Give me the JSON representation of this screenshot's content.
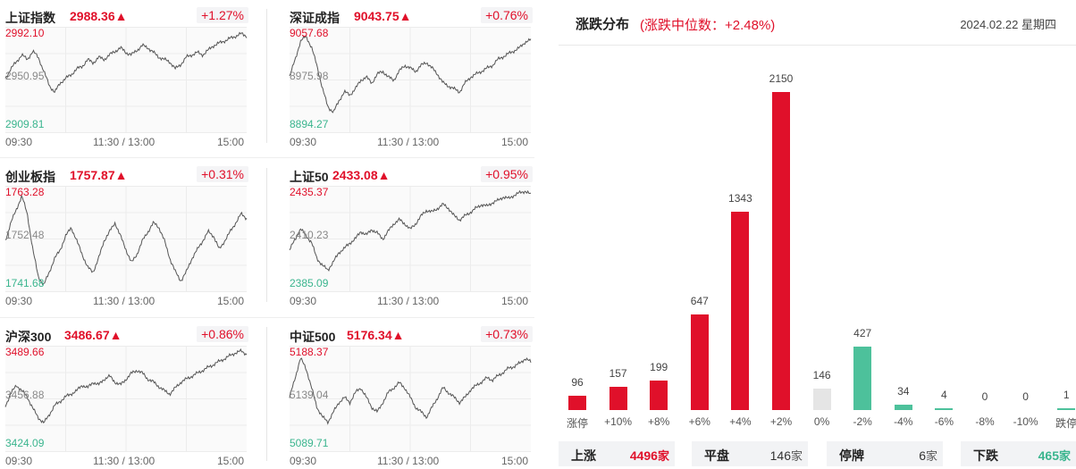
{
  "indices": [
    {
      "name": "上证指数",
      "value": "2988.36▲",
      "change": "+1.27%",
      "high": "2992.10",
      "mid": "2950.95",
      "low": "2909.81",
      "x_labels": [
        "09:30",
        "11:30 / 13:00",
        "15:00"
      ],
      "series": [
        2952,
        2960,
        2966,
        2972,
        2968,
        2975,
        2970,
        2958,
        2946,
        2940,
        2948,
        2952,
        2955,
        2960,
        2962,
        2968,
        2965,
        2970,
        2968,
        2972,
        2975,
        2978,
        2974,
        2972,
        2976,
        2980,
        2978,
        2974,
        2970,
        2968,
        2966,
        2960,
        2964,
        2970,
        2972,
        2974,
        2972,
        2976,
        2980,
        2982,
        2984,
        2986,
        2988,
        2990,
        2988
      ]
    },
    {
      "name": "深证成指",
      "value": "9043.75▲",
      "change": "+0.76%",
      "high": "9057.68",
      "mid": "8975.98",
      "low": "8894.27",
      "x_labels": [
        "09:30",
        "11:30 / 13:00",
        "15:00"
      ],
      "series": [
        8980,
        9010,
        9040,
        9050,
        9030,
        9000,
        8960,
        8930,
        8920,
        8940,
        8955,
        8950,
        8960,
        8975,
        8980,
        8970,
        8985,
        8990,
        8980,
        8975,
        8990,
        9000,
        8995,
        8990,
        9000,
        9005,
        8995,
        8985,
        8970,
        8965,
        8960,
        8955,
        8970,
        8980,
        8985,
        8990,
        8995,
        9000,
        9010,
        9015,
        9020,
        9025,
        9030,
        9040,
        9043
      ]
    },
    {
      "name": "创业板指",
      "value": "1757.87▲",
      "change": "+0.31%",
      "high": "1763.28",
      "mid": "1752.48",
      "low": "1741.68",
      "x_labels": [
        "09:30",
        "11:30 / 13:00",
        "15:00"
      ],
      "series": [
        1752,
        1756,
        1759,
        1762,
        1758,
        1750,
        1744,
        1742,
        1745,
        1748,
        1750,
        1753,
        1755,
        1752,
        1749,
        1746,
        1745,
        1748,
        1752,
        1754,
        1756,
        1753,
        1750,
        1747,
        1749,
        1752,
        1754,
        1756,
        1755,
        1752,
        1748,
        1745,
        1743,
        1745,
        1748,
        1750,
        1752,
        1754,
        1753,
        1750,
        1752,
        1754,
        1756,
        1758,
        1757
      ]
    },
    {
      "name": "上证50",
      "value": "2433.08▲",
      "change": "+0.95%",
      "high": "2435.37",
      "mid": "2410.23",
      "low": "2385.09",
      "x_labels": [
        "09:30",
        "11:30 / 13:00",
        "15:00"
      ],
      "series": [
        2404,
        2410,
        2415,
        2412,
        2408,
        2400,
        2396,
        2394,
        2398,
        2403,
        2405,
        2408,
        2410,
        2414,
        2412,
        2415,
        2413,
        2410,
        2414,
        2418,
        2420,
        2418,
        2415,
        2418,
        2422,
        2425,
        2424,
        2426,
        2428,
        2426,
        2422,
        2420,
        2422,
        2424,
        2426,
        2428,
        2427,
        2429,
        2430,
        2432,
        2431,
        2433,
        2434,
        2435,
        2433
      ]
    },
    {
      "name": "沪深300",
      "value": "3486.67▲",
      "change": "+0.86%",
      "high": "3489.66",
      "mid": "3456.88",
      "low": "3424.09",
      "x_labels": [
        "09:30",
        "11:30 / 13:00",
        "15:00"
      ],
      "series": [
        3452,
        3460,
        3466,
        3462,
        3458,
        3450,
        3444,
        3440,
        3446,
        3452,
        3455,
        3458,
        3460,
        3462,
        3466,
        3464,
        3468,
        3466,
        3470,
        3472,
        3468,
        3466,
        3470,
        3474,
        3476,
        3474,
        3470,
        3468,
        3465,
        3462,
        3460,
        3464,
        3468,
        3470,
        3472,
        3474,
        3476,
        3478,
        3480,
        3482,
        3484,
        3486,
        3488,
        3489,
        3487
      ]
    },
    {
      "name": "中证500",
      "value": "5176.34▲",
      "change": "+0.73%",
      "high": "5188.37",
      "mid": "5139.04",
      "low": "5089.71",
      "x_labels": [
        "09:30",
        "11:30 / 13:00",
        "15:00"
      ],
      "series": [
        5140,
        5160,
        5180,
        5170,
        5150,
        5130,
        5120,
        5115,
        5125,
        5135,
        5140,
        5135,
        5145,
        5150,
        5140,
        5130,
        5125,
        5135,
        5145,
        5150,
        5155,
        5150,
        5140,
        5130,
        5125,
        5120,
        5130,
        5140,
        5150,
        5145,
        5140,
        5135,
        5140,
        5148,
        5152,
        5156,
        5160,
        5158,
        5162,
        5166,
        5170,
        5172,
        5175,
        5180,
        5176
      ]
    }
  ],
  "distribution": {
    "title": "涨跌分布",
    "subtitle": "(涨跌中位数：+2.48%)",
    "date": "2024.02.22 星期四",
    "colors": {
      "up": "#e0102a",
      "flat": "#e5e5e5",
      "down": "#4dc19b"
    },
    "chart_data": {
      "type": "bar",
      "categories": [
        "涨停",
        "+10%",
        "+8%",
        "+6%",
        "+4%",
        "+2%",
        "0%",
        "-2%",
        "-4%",
        "-6%",
        "-8%",
        "-10%",
        "跌停"
      ],
      "values": [
        96,
        157,
        199,
        647,
        1343,
        2150,
        146,
        427,
        34,
        4,
        0,
        0,
        1
      ],
      "kinds": [
        "up",
        "up",
        "up",
        "up",
        "up",
        "up",
        "flat",
        "down",
        "down",
        "down",
        "down",
        "down",
        "down"
      ]
    },
    "stats": [
      {
        "label": "上涨",
        "value": "4496",
        "unit": "家",
        "color": "#e0102a"
      },
      {
        "label": "平盘",
        "value": "146",
        "unit": "家",
        "color": "#333333"
      },
      {
        "label": "停牌",
        "value": "6",
        "unit": "家",
        "color": "#333333"
      },
      {
        "label": "下跌",
        "value": "465",
        "unit": "家",
        "color": "#3ab58e"
      }
    ]
  }
}
